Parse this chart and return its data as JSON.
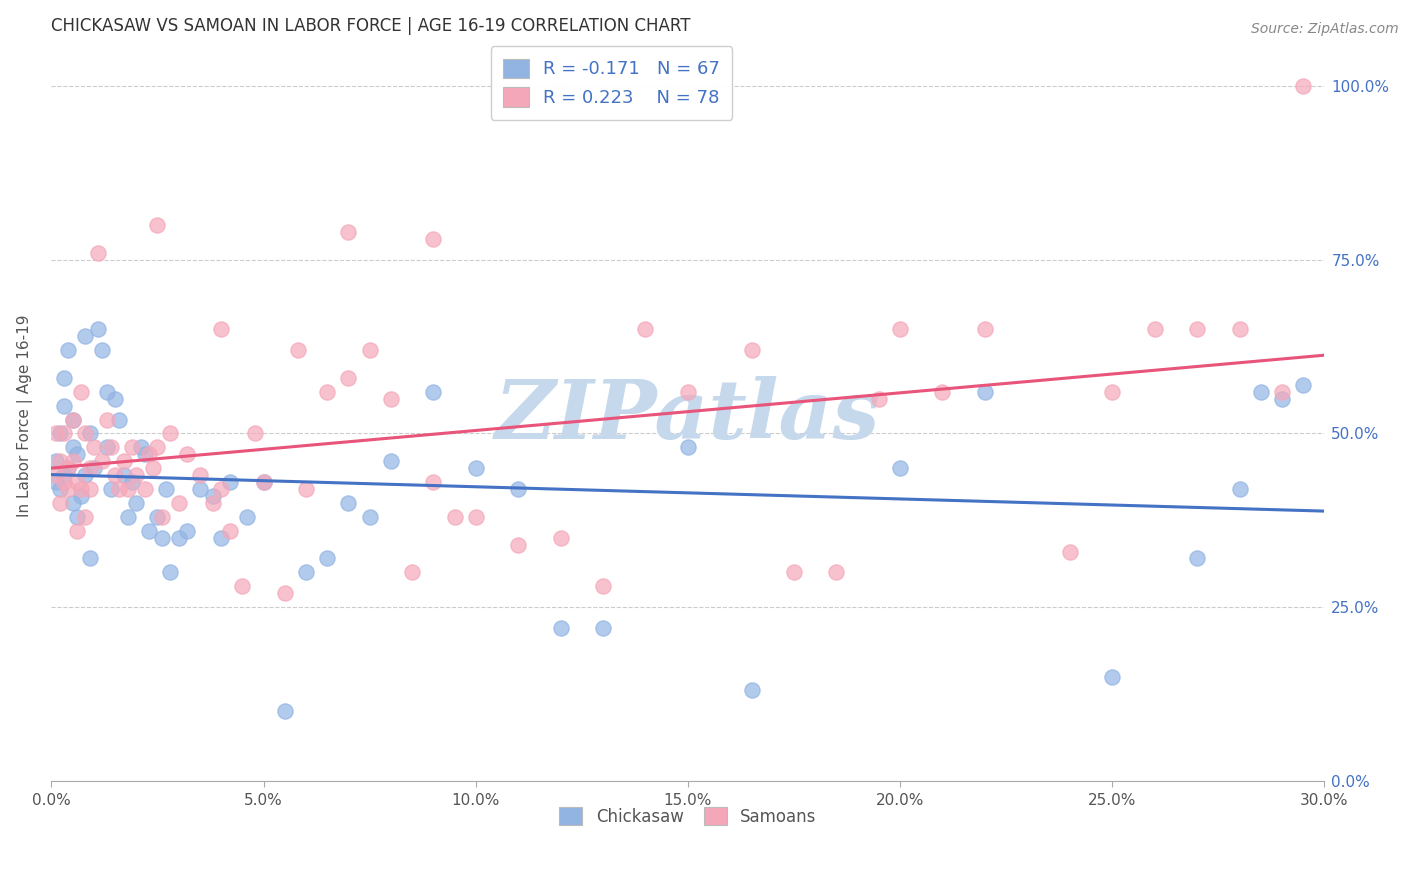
{
  "title": "CHICKASAW VS SAMOAN IN LABOR FORCE | AGE 16-19 CORRELATION CHART",
  "source": "Source: ZipAtlas.com",
  "xlabel_ticks": [
    "0.0%",
    "5.0%",
    "10.0%",
    "15.0%",
    "20.0%",
    "25.0%",
    "30.0%"
  ],
  "ylabel_ticks_right": [
    "0.0%",
    "25.0%",
    "50.0%",
    "75.0%",
    "100.0%"
  ],
  "ylabel_label": "In Labor Force | Age 16-19",
  "legend_labels": [
    "Chickasaw",
    "Samoans"
  ],
  "chickasaw_R": -0.171,
  "chickasaw_N": 67,
  "samoan_R": 0.223,
  "samoan_N": 78,
  "chickasaw_color": "#92b4e3",
  "samoan_color": "#f4a7b9",
  "chickasaw_line_color": "#4472c4",
  "samoan_line_color": "#e8547a",
  "background_color": "#ffffff",
  "watermark_text": "ZIPatlas",
  "watermark_color": "#c5d8ec",
  "xlim": [
    0.0,
    0.3
  ],
  "ylim": [
    0.0,
    1.05
  ],
  "chickasaw_x": [
    0.001,
    0.001,
    0.002,
    0.002,
    0.003,
    0.003,
    0.003,
    0.004,
    0.004,
    0.005,
    0.005,
    0.005,
    0.006,
    0.006,
    0.007,
    0.008,
    0.008,
    0.009,
    0.009,
    0.01,
    0.011,
    0.012,
    0.013,
    0.013,
    0.014,
    0.015,
    0.016,
    0.017,
    0.018,
    0.019,
    0.02,
    0.021,
    0.022,
    0.023,
    0.025,
    0.026,
    0.027,
    0.028,
    0.03,
    0.032,
    0.035,
    0.038,
    0.04,
    0.042,
    0.046,
    0.05,
    0.055,
    0.06,
    0.065,
    0.07,
    0.075,
    0.08,
    0.09,
    0.1,
    0.11,
    0.12,
    0.13,
    0.15,
    0.165,
    0.2,
    0.22,
    0.25,
    0.27,
    0.28,
    0.285,
    0.29,
    0.295
  ],
  "chickasaw_y": [
    0.43,
    0.46,
    0.5,
    0.42,
    0.44,
    0.54,
    0.58,
    0.62,
    0.45,
    0.48,
    0.4,
    0.52,
    0.47,
    0.38,
    0.41,
    0.64,
    0.44,
    0.32,
    0.5,
    0.45,
    0.65,
    0.62,
    0.56,
    0.48,
    0.42,
    0.55,
    0.52,
    0.44,
    0.38,
    0.43,
    0.4,
    0.48,
    0.47,
    0.36,
    0.38,
    0.35,
    0.42,
    0.3,
    0.35,
    0.36,
    0.42,
    0.41,
    0.35,
    0.43,
    0.38,
    0.43,
    0.1,
    0.3,
    0.32,
    0.4,
    0.38,
    0.46,
    0.56,
    0.45,
    0.42,
    0.22,
    0.22,
    0.48,
    0.13,
    0.45,
    0.56,
    0.15,
    0.32,
    0.42,
    0.56,
    0.55,
    0.57
  ],
  "samoan_x": [
    0.001,
    0.001,
    0.002,
    0.002,
    0.003,
    0.003,
    0.004,
    0.004,
    0.005,
    0.005,
    0.006,
    0.006,
    0.007,
    0.007,
    0.008,
    0.008,
    0.009,
    0.009,
    0.01,
    0.011,
    0.012,
    0.013,
    0.014,
    0.015,
    0.016,
    0.017,
    0.018,
    0.019,
    0.02,
    0.022,
    0.023,
    0.024,
    0.025,
    0.026,
    0.028,
    0.03,
    0.032,
    0.035,
    0.038,
    0.04,
    0.042,
    0.045,
    0.048,
    0.05,
    0.055,
    0.058,
    0.06,
    0.065,
    0.07,
    0.075,
    0.08,
    0.085,
    0.09,
    0.095,
    0.1,
    0.11,
    0.12,
    0.13,
    0.14,
    0.15,
    0.165,
    0.175,
    0.185,
    0.195,
    0.2,
    0.21,
    0.22,
    0.24,
    0.25,
    0.26,
    0.27,
    0.28,
    0.29,
    0.295,
    0.025,
    0.04,
    0.07,
    0.09
  ],
  "samoan_y": [
    0.44,
    0.5,
    0.46,
    0.4,
    0.43,
    0.5,
    0.45,
    0.42,
    0.52,
    0.46,
    0.36,
    0.43,
    0.56,
    0.42,
    0.5,
    0.38,
    0.45,
    0.42,
    0.48,
    0.76,
    0.46,
    0.52,
    0.48,
    0.44,
    0.42,
    0.46,
    0.42,
    0.48,
    0.44,
    0.42,
    0.47,
    0.45,
    0.48,
    0.38,
    0.5,
    0.4,
    0.47,
    0.44,
    0.4,
    0.42,
    0.36,
    0.28,
    0.5,
    0.43,
    0.27,
    0.62,
    0.42,
    0.56,
    0.58,
    0.62,
    0.55,
    0.3,
    0.43,
    0.38,
    0.38,
    0.34,
    0.35,
    0.28,
    0.65,
    0.56,
    0.62,
    0.3,
    0.3,
    0.55,
    0.65,
    0.56,
    0.65,
    0.33,
    0.56,
    0.65,
    0.65,
    0.65,
    0.56,
    1.0,
    0.8,
    0.65,
    0.79,
    0.78
  ]
}
